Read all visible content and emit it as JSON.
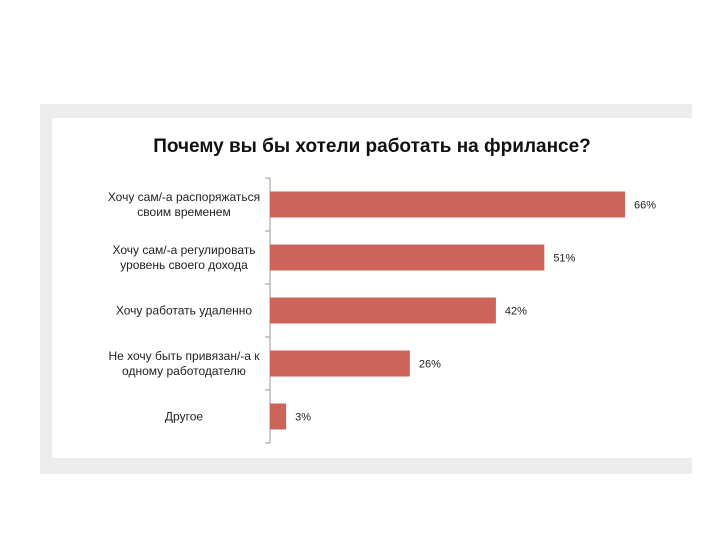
{
  "chart_data": {
    "type": "bar",
    "orientation": "horizontal",
    "title": "Почему вы бы хотели работать на фрилансе?",
    "categories": [
      [
        "Хочу сам/-а распоряжаться",
        "своим временем"
      ],
      [
        "Хочу сам/-а регулировать",
        "уровень своего дохода"
      ],
      [
        "Хочу работать удаленно"
      ],
      [
        "Не хочу быть привязан/-а к",
        "одному работодателю"
      ],
      [
        "Другое"
      ]
    ],
    "values": [
      66,
      51,
      42,
      26,
      3
    ],
    "value_labels": [
      "66%",
      "51%",
      "42%",
      "26%",
      "3%"
    ],
    "xlim": [
      0,
      100
    ],
    "unit": "%",
    "grid": false,
    "legend": "none",
    "bar_color": "#cd6459"
  }
}
